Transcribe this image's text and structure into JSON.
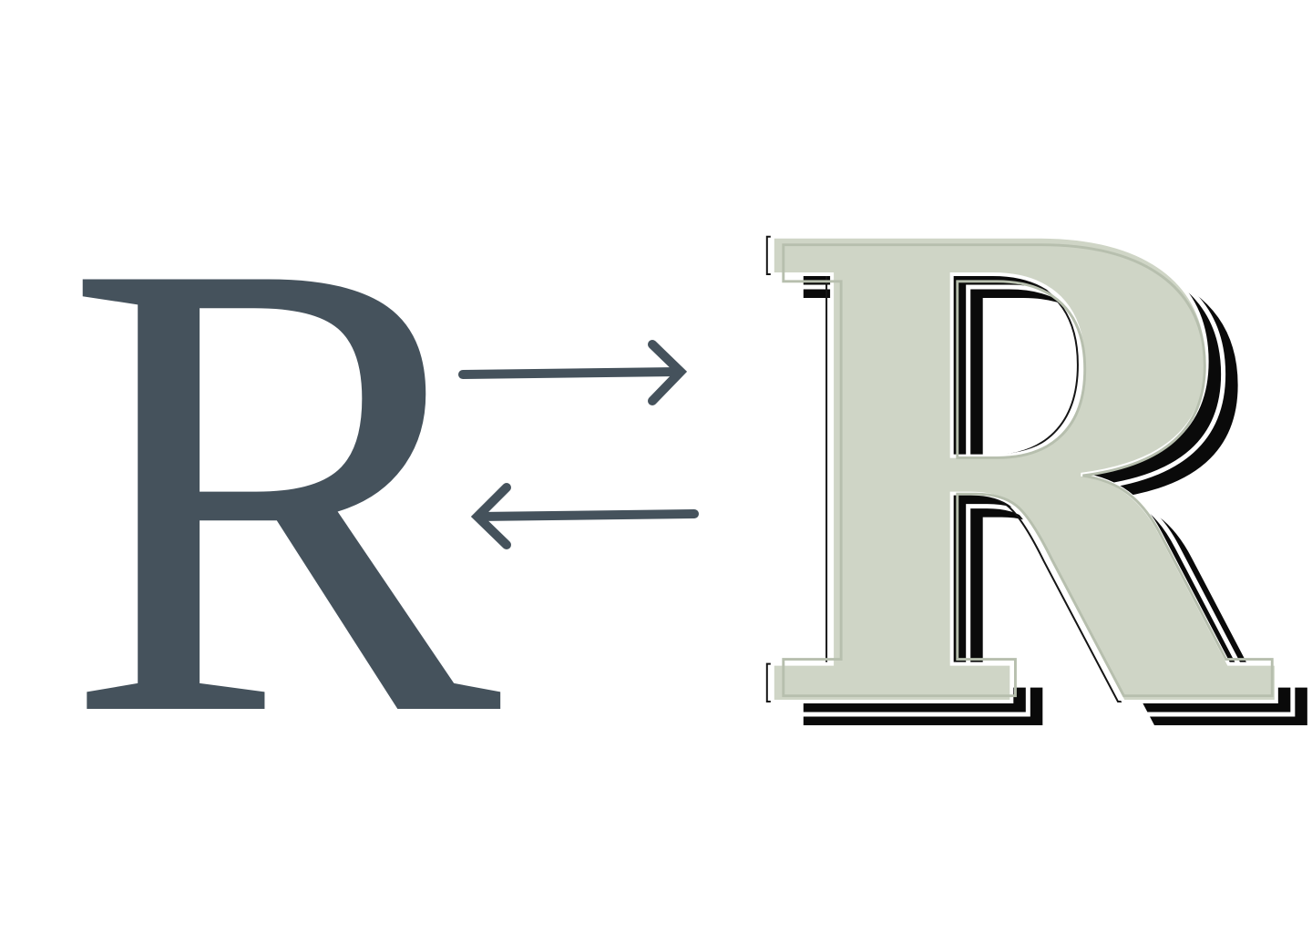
{
  "letters": {
    "plain": "R",
    "ornate": "R"
  },
  "arrows": {
    "forward_icon": "arrow-right-icon",
    "backward_icon": "arrow-left-icon"
  },
  "colors": {
    "plain_letter": "#45525c",
    "arrow_stroke": "#45525c",
    "ornate_face": "#cfd5c6",
    "ornate_shadow": "#0a0a0a",
    "background": "#ffffff"
  }
}
